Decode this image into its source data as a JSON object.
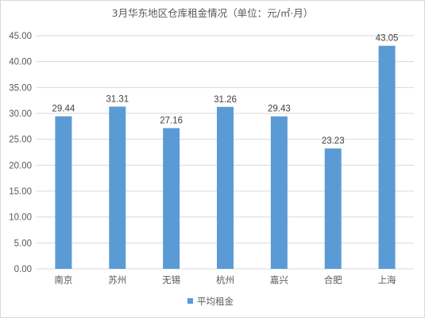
{
  "chart_data": {
    "type": "bar",
    "title": "3月华东地区仓库租金情况（单位：元/㎡·月）",
    "categories": [
      "南京",
      "苏州",
      "无锡",
      "杭州",
      "嘉兴",
      "合肥",
      "上海"
    ],
    "series": [
      {
        "name": "平均租金",
        "values": [
          29.44,
          31.31,
          27.16,
          31.26,
          29.43,
          23.23,
          43.05
        ],
        "labels": [
          "29.44",
          "31.31",
          "27.16",
          "31.26",
          "29.43",
          "23.23",
          "43.05"
        ]
      }
    ],
    "y_ticks": [
      "0.00",
      "5.00",
      "10.00",
      "15.00",
      "20.00",
      "25.00",
      "30.00",
      "35.00",
      "40.00",
      "45.00"
    ],
    "ylim": [
      0,
      45
    ],
    "grid": true,
    "legend_position": "bottom",
    "colors": {
      "bar": "#5B9BD5",
      "grid": "#d9d9d9",
      "text": "#595959"
    }
  }
}
